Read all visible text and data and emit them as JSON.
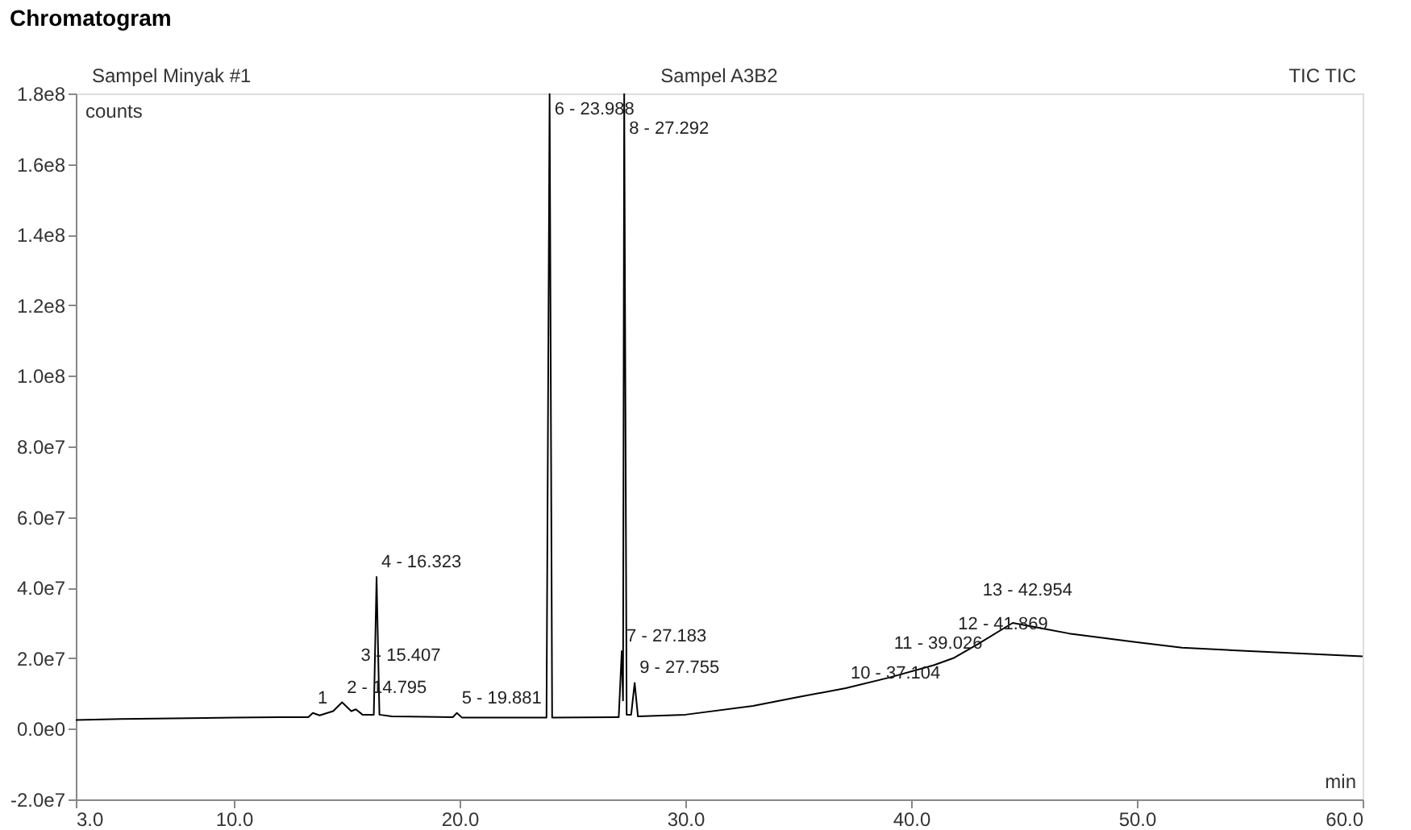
{
  "chart_data": {
    "type": "line",
    "title": "Chromatogram",
    "subtitle": "Sampel Minyak #1",
    "annotations": [
      "Sampel A3B2",
      "TIC TIC",
      {
        "text": "1",
        "x": 13.5,
        "y": 4500000
      },
      {
        "text": "2 - 14.795",
        "x": 14.795,
        "y": 7500000
      },
      {
        "text": "3 - 15.407",
        "x": 15.407,
        "y": 5500000
      },
      {
        "text": "4 - 16.323",
        "x": 16.323,
        "y": 43000000
      },
      {
        "text": "5 - 19.881",
        "x": 19.881,
        "y": 4500000
      },
      {
        "text": "6 - 23.988",
        "x": 23.988,
        "y": 180000000
      },
      {
        "text": "7 - 27.183",
        "x": 27.183,
        "y": 22000000
      },
      {
        "text": "8 - 27.292",
        "x": 27.292,
        "y": 180000000
      },
      {
        "text": "9 - 27.755",
        "x": 27.755,
        "y": 13000000
      },
      {
        "text": "10 - 37.104",
        "x": 37.104,
        "y": 11500000
      },
      {
        "text": "11 - 39.026",
        "x": 39.026,
        "y": 14500000
      },
      {
        "text": "12 - 41.869",
        "x": 41.869,
        "y": 20000000
      },
      {
        "text": "13 - 42.954",
        "x": 42.954,
        "y": 24000000
      }
    ],
    "ylabel": "counts",
    "xlabel": "min",
    "x": [
      3,
      5,
      8,
      10,
      12,
      13.3,
      13.5,
      13.8,
      14.4,
      14.795,
      15.2,
      15.407,
      15.7,
      16.2,
      16.323,
      16.45,
      17,
      19.7,
      19.881,
      20.1,
      23.85,
      23.988,
      24.1,
      27.05,
      27.183,
      27.24,
      27.292,
      27.4,
      27.6,
      27.755,
      27.9,
      30,
      33,
      35,
      37.104,
      39.026,
      41,
      41.869,
      42.954,
      44.5,
      47,
      50,
      52,
      55,
      60
    ],
    "series": [
      {
        "color": "#000000",
        "values": [
          2500000,
          2800000,
          3000000,
          3200000,
          3300000,
          3300000,
          4500000,
          3800000,
          5000000,
          7500000,
          5000000,
          5500000,
          4000000,
          4000000,
          43000000,
          4000000,
          3500000,
          3300000,
          4500000,
          3200000,
          3200000,
          180000000,
          3200000,
          3300000,
          22000000,
          8000000,
          180000000,
          4000000,
          4000000,
          13000000,
          3500000,
          4000000,
          6500000,
          9000000,
          11500000,
          14500000,
          18000000,
          20000000,
          24000000,
          30000000,
          27000000,
          24500000,
          23000000,
          22000000,
          20500000
        ]
      }
    ],
    "xlim": [
      3,
      60
    ],
    "ylim": [
      -20000000,
      180000000
    ],
    "xticks": [
      {
        "value": 3,
        "label": "3.0"
      },
      {
        "value": 10,
        "label": "10.0"
      },
      {
        "value": 20,
        "label": "20.0"
      },
      {
        "value": 30,
        "label": "30.0"
      },
      {
        "value": 40,
        "label": "40.0"
      },
      {
        "value": 50,
        "label": "50.0"
      },
      {
        "value": 60,
        "label": "60.0"
      }
    ],
    "yticks": [
      {
        "value": -20000000,
        "label": "-2.0e7"
      },
      {
        "value": 0,
        "label": "0.0e0"
      },
      {
        "value": 20000000,
        "label": "2.0e7"
      },
      {
        "value": 40000000,
        "label": "4.0e7"
      },
      {
        "value": 60000000,
        "label": "6.0e7"
      },
      {
        "value": 80000000,
        "label": "8.0e7"
      },
      {
        "value": 100000000,
        "label": "1.0e8"
      },
      {
        "value": 120000000,
        "label": "1.2e8"
      },
      {
        "value": 140000000,
        "label": "1.4e8"
      },
      {
        "value": 160000000,
        "label": "1.6e8"
      },
      {
        "value": 180000000,
        "label": "1.8e8"
      }
    ],
    "grid": false,
    "legend": false,
    "marker": "none",
    "line_style": "solid"
  }
}
